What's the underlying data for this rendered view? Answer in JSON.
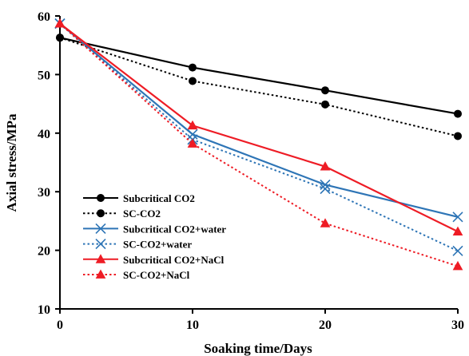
{
  "chart_data": {
    "type": "line",
    "title": "",
    "xlabel": "Soaking time/Days",
    "ylabel": "Axial stress/MPa",
    "xlim": [
      0,
      30
    ],
    "ylim": [
      10,
      60
    ],
    "x_ticks": [
      "0",
      "10",
      "20",
      "30"
    ],
    "y_ticks": [
      "10",
      "20",
      "30",
      "40",
      "50",
      "60"
    ],
    "grid": false,
    "legend_position": "bottom-left",
    "series": [
      {
        "name": "Subcritical CO2",
        "color": "#000000",
        "dash": "solid",
        "marker": "circle",
        "x": [
          0,
          10,
          20,
          30
        ],
        "y": [
          56.3,
          51.2,
          47.3,
          43.3
        ]
      },
      {
        "name": "SC-CO2",
        "color": "#000000",
        "dash": "dotted",
        "marker": "circle",
        "x": [
          0,
          10,
          20,
          30
        ],
        "y": [
          56.3,
          48.9,
          44.9,
          39.5
        ]
      },
      {
        "name": "Subcritical CO2+water",
        "color": "#2e75b6",
        "dash": "solid",
        "marker": "x",
        "x": [
          0,
          10,
          20,
          30
        ],
        "y": [
          58.7,
          39.8,
          31.2,
          25.7
        ]
      },
      {
        "name": "SC-CO2+water",
        "color": "#2e75b6",
        "dash": "dotted",
        "marker": "x",
        "x": [
          0,
          10,
          20,
          30
        ],
        "y": [
          58.7,
          38.9,
          30.5,
          19.9
        ]
      },
      {
        "name": "Subcritical CO2+NaCl",
        "color": "#ee1c25",
        "dash": "solid",
        "marker": "triangle",
        "x": [
          0,
          10,
          20,
          30
        ],
        "y": [
          58.7,
          41.3,
          34.3,
          23.2
        ]
      },
      {
        "name": "SC-CO2+NaCl",
        "color": "#ee1c25",
        "dash": "dotted",
        "marker": "triangle",
        "x": [
          0,
          10,
          20,
          30
        ],
        "y": [
          58.7,
          38.2,
          24.6,
          17.3
        ]
      }
    ]
  }
}
